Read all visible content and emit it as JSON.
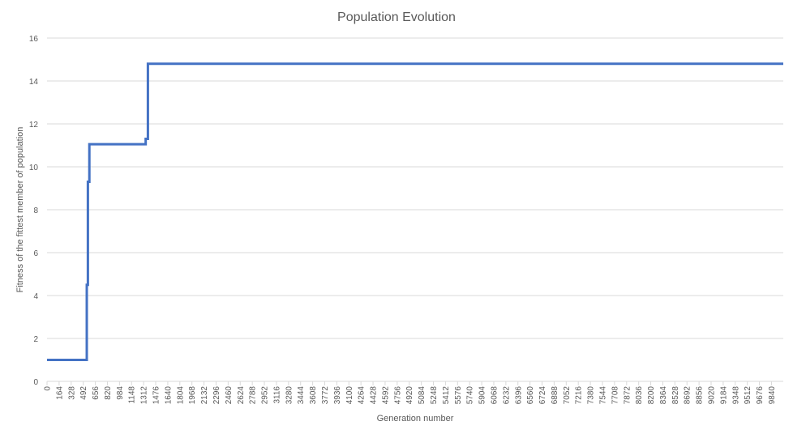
{
  "chart_data": {
    "type": "line",
    "title": "Population Evolution",
    "xlabel": "Generation number",
    "ylabel": "Fitness of the fittest member of population",
    "xlim": [
      0,
      10000
    ],
    "ylim": [
      0,
      16
    ],
    "y_ticks": [
      0,
      2,
      4,
      6,
      8,
      10,
      12,
      14,
      16
    ],
    "x_ticks": [
      0,
      164,
      328,
      492,
      656,
      820,
      984,
      1148,
      1312,
      1476,
      1640,
      1804,
      1968,
      2132,
      2296,
      2460,
      2624,
      2788,
      2952,
      3116,
      3280,
      3444,
      3608,
      3772,
      3936,
      4100,
      4264,
      4428,
      4592,
      4756,
      4920,
      5084,
      5248,
      5412,
      5576,
      5740,
      5904,
      6068,
      6232,
      6396,
      6560,
      6724,
      6888,
      7052,
      7216,
      7380,
      7544,
      7708,
      7872,
      8036,
      8200,
      8364,
      8528,
      8692,
      8856,
      9020,
      9184,
      9348,
      9512,
      9676,
      9840
    ],
    "grid": true,
    "line_color": "#4472C4",
    "series": [
      {
        "x": [
          0,
          540,
          540,
          555,
          555,
          575,
          575,
          1340,
          1340,
          1370,
          1370,
          10000
        ],
        "y": [
          1.0,
          1.0,
          4.5,
          4.5,
          9.3,
          9.3,
          11.05,
          11.05,
          11.3,
          11.3,
          14.8,
          14.8
        ]
      }
    ]
  }
}
